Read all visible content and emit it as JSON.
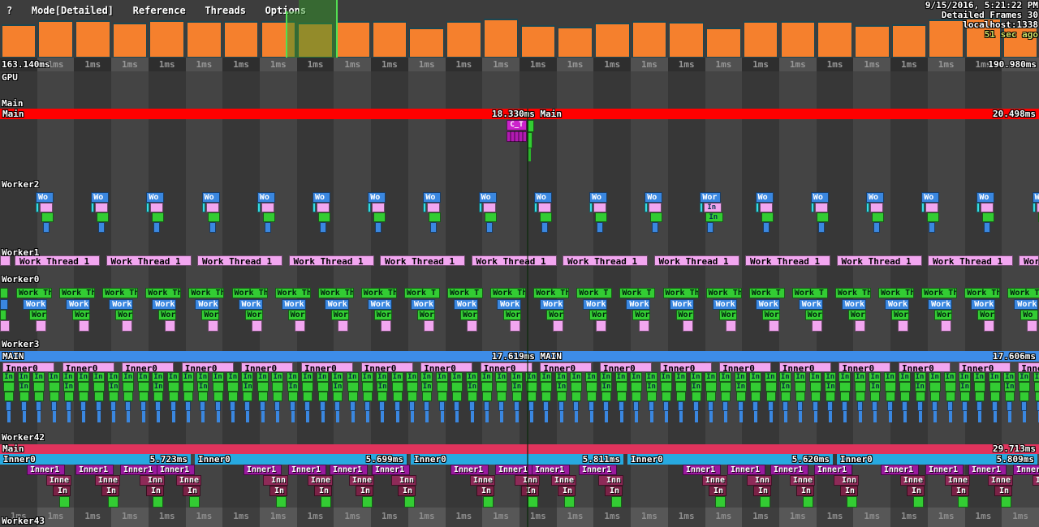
{
  "menu": {
    "items": [
      "?",
      "Mode[Detailed]",
      "Reference",
      "Threads",
      "Options"
    ]
  },
  "status": {
    "line1": "9/15/2016, 5:21:22 PM",
    "line2": "Detailed Frames 30",
    "line3": "localhost:1338",
    "line4": "51 sec ago"
  },
  "ruler": {
    "start": "163.140ms",
    "tick": "1ms",
    "end": "190.980ms"
  },
  "bottom_ruler": {
    "tick": "1ms"
  },
  "frame_graph": {
    "bar_heights": [
      41,
      46,
      46,
      43,
      46,
      45,
      45,
      45,
      43,
      45,
      45,
      37,
      45,
      48,
      40,
      38,
      43,
      45,
      44,
      37,
      45,
      45,
      45,
      40,
      41,
      47,
      49,
      38
    ]
  },
  "threads": {
    "gpu": {
      "name": "GPU"
    },
    "main": {
      "name": "Main",
      "frame_bar": {
        "label": "Main",
        "duration_label": "18.330ms Main",
        "end_duration": "20.498ms"
      },
      "child": {
        "label": "C_T"
      }
    },
    "worker2": {
      "name": "Worker2",
      "task": {
        "header": "Wo",
        "header_wide": "Wor",
        "inner": "In",
        "count": 19,
        "wide_index": 12
      }
    },
    "worker1": {
      "name": "Worker1",
      "task_label": "Work Thread 1",
      "count": 11
    },
    "worker0": {
      "name": "Worker0",
      "level2_label": "Work",
      "level3_label": "Wor",
      "level3_short": "Wo",
      "headers": [
        "Work Th",
        "Work Th",
        "Work Th",
        "Work Th",
        "Work Th",
        "Work Th",
        "Work Th",
        "Work Th",
        "Work Th",
        "Work T",
        "Work T",
        "Work Th",
        "Work Th",
        "Work T",
        "Work T",
        "Work Th",
        "Work Th",
        "Work T",
        "Work T",
        "Work Th",
        "Work Th",
        "Work Th",
        "Work Th",
        "Work T"
      ]
    },
    "worker3": {
      "name": "Worker3",
      "main_bar": {
        "label": "MAIN",
        "duration_label": "17.619ms MAIN",
        "end_duration": "17.606ms"
      },
      "group_label": "Inner0",
      "leaf_label": "In",
      "group_count": 18
    },
    "worker42": {
      "name": "Worker42",
      "main_bar": {
        "label": "Main",
        "end_duration": "29.713ms"
      },
      "inner1_label": "Inner1",
      "leaf3_label": "In",
      "segments": [
        {
          "label": "Inner0",
          "duration": "5.723ms",
          "inner2_labels": [
            "Inne",
            "Inne",
            "Inn",
            "Inne"
          ]
        },
        {
          "label": "Inner0",
          "duration": "5.699ms",
          "inner2_labels": [
            "Inn",
            "Inne",
            "Inne",
            "Inn"
          ]
        },
        {
          "label": "Inner0",
          "duration": "5.811ms",
          "inner2_labels": [
            "Inne",
            "Inn",
            "Inne",
            "Inn"
          ]
        },
        {
          "label": "Inner0",
          "duration": "5.620ms",
          "inner2_labels": [
            "Inne",
            "Inn",
            "Inne",
            "Inn"
          ]
        },
        {
          "label": "Inner0",
          "duration": "5.809ms",
          "inner2_labels": [
            "Inne",
            "Inne",
            "Inne",
            "Inne"
          ]
        }
      ]
    },
    "worker43": {
      "name": "Worker43"
    }
  },
  "colors": {
    "accent_orange": "#f5802d",
    "frame_red": "#ff0000",
    "selection_green": "#52e052",
    "bar_blue": "#3a87e0",
    "bar_cyan_sliver": "#35dce4",
    "bar_cyan": "#27a9e0",
    "bar_pink": "#f2a6f0",
    "bar_green": "#33cc33",
    "bar_purple": "#9a1a9e",
    "bar_maroon": "#8e2a58",
    "bar_maroon_dark": "#7a2246",
    "bar_crimson": "#e0335c"
  }
}
